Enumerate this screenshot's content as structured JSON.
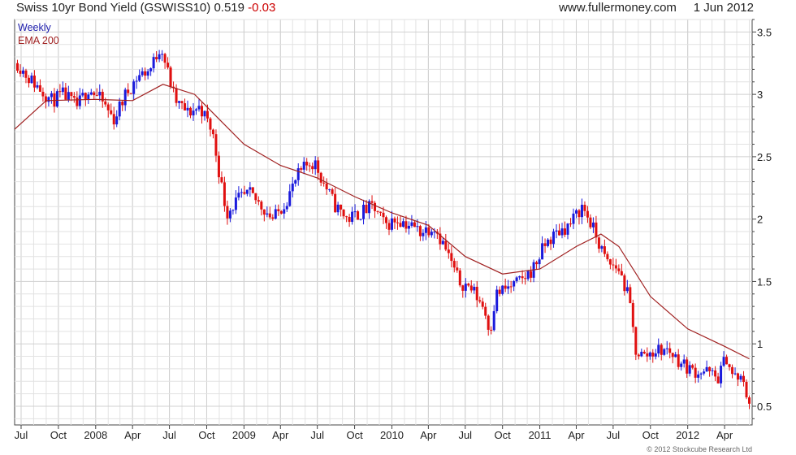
{
  "header": {
    "title": "Swiss 10yr Bond Yield (GSWISS10)",
    "last": "0.519",
    "change": "-0.03",
    "site": "www.fullermoney.com",
    "date": "1 Jun 2012"
  },
  "legend": {
    "period": "Weekly",
    "ema": "EMA 200"
  },
  "copyright": "© 2012 Stockcube Research Ltd",
  "colors": {
    "up": "#1a1adc",
    "down": "#e01010",
    "ema": "#a02020",
    "grid": "#e2e2e2",
    "axis": "#444444"
  },
  "chart_data": {
    "type": "line",
    "chart_style": "weekly candlestick (OHLC) with 200-period EMA overlay",
    "x_range": [
      "2007-06-15",
      "2012-06-08"
    ],
    "ylim": [
      0.35,
      3.6
    ],
    "y_ticks": [
      0.5,
      1,
      1.5,
      2,
      2.5,
      3,
      3.5
    ],
    "y_axis_side": "right",
    "grid": true,
    "x_ticks": [
      {
        "label": "Jul",
        "date": "2007-07-01"
      },
      {
        "label": "Oct",
        "date": "2007-10-01"
      },
      {
        "label": "2008",
        "date": "2008-01-01"
      },
      {
        "label": "Apr",
        "date": "2008-04-01"
      },
      {
        "label": "Jul",
        "date": "2008-07-01"
      },
      {
        "label": "Oct",
        "date": "2008-10-01"
      },
      {
        "label": "2009",
        "date": "2009-01-01"
      },
      {
        "label": "Apr",
        "date": "2009-04-01"
      },
      {
        "label": "Jul",
        "date": "2009-07-01"
      },
      {
        "label": "Oct",
        "date": "2009-10-01"
      },
      {
        "label": "2010",
        "date": "2010-01-01"
      },
      {
        "label": "Apr",
        "date": "2010-04-01"
      },
      {
        "label": "Jul",
        "date": "2010-07-01"
      },
      {
        "label": "Oct",
        "date": "2010-10-01"
      },
      {
        "label": "2011",
        "date": "2011-01-01"
      },
      {
        "label": "Apr",
        "date": "2011-04-01"
      },
      {
        "label": "Jul",
        "date": "2011-07-01"
      },
      {
        "label": "Oct",
        "date": "2011-10-01"
      },
      {
        "label": "2012",
        "date": "2012-01-01"
      },
      {
        "label": "Apr",
        "date": "2012-04-01"
      }
    ],
    "series": [
      {
        "name": "Weekly",
        "kind": "candlestick-close",
        "x": [
          "2007-06-22",
          "2007-07-15",
          "2007-08-15",
          "2007-09-15",
          "2007-10-15",
          "2007-11-15",
          "2007-12-15",
          "2008-01-15",
          "2008-02-15",
          "2008-03-15",
          "2008-04-15",
          "2008-05-15",
          "2008-06-10",
          "2008-06-25",
          "2008-07-15",
          "2008-08-15",
          "2008-09-15",
          "2008-10-15",
          "2008-11-10",
          "2008-11-20",
          "2008-12-15",
          "2009-01-15",
          "2009-02-15",
          "2009-03-15",
          "2009-04-15",
          "2009-05-15",
          "2009-06-10",
          "2009-06-25",
          "2009-07-15",
          "2009-08-15",
          "2009-09-15",
          "2009-10-15",
          "2009-11-15",
          "2009-12-15",
          "2010-01-15",
          "2010-02-15",
          "2010-03-15",
          "2010-04-15",
          "2010-05-15",
          "2010-06-15",
          "2010-07-15",
          "2010-08-15",
          "2010-08-31",
          "2010-09-15",
          "2010-10-15",
          "2010-11-15",
          "2010-12-15",
          "2011-01-15",
          "2011-02-15",
          "2011-03-15",
          "2011-04-15",
          "2011-04-25",
          "2011-05-15",
          "2011-06-15",
          "2011-07-15",
          "2011-08-10",
          "2011-08-25",
          "2011-09-15",
          "2011-10-15",
          "2011-11-15",
          "2011-12-15",
          "2012-01-15",
          "2012-02-15",
          "2012-03-15",
          "2012-04-05",
          "2012-04-20",
          "2012-05-15",
          "2012-06-01"
        ],
        "values": [
          3.25,
          3.15,
          3.05,
          2.95,
          3.0,
          2.9,
          3.05,
          2.95,
          2.8,
          3.0,
          3.15,
          3.2,
          3.4,
          3.2,
          2.95,
          2.85,
          2.9,
          2.7,
          2.2,
          2.05,
          2.15,
          2.2,
          2.1,
          2.0,
          2.15,
          2.35,
          2.45,
          2.45,
          2.3,
          2.1,
          2.0,
          2.05,
          2.1,
          1.95,
          2.0,
          1.95,
          1.9,
          1.95,
          1.75,
          1.5,
          1.45,
          1.3,
          1.1,
          1.4,
          1.45,
          1.5,
          1.6,
          1.8,
          1.9,
          1.95,
          2.1,
          2.05,
          1.9,
          1.65,
          1.6,
          1.35,
          0.95,
          0.9,
          0.95,
          0.95,
          0.85,
          0.78,
          0.78,
          0.72,
          0.9,
          0.75,
          0.7,
          0.52
        ]
      },
      {
        "name": "EMA 200",
        "kind": "line",
        "x": [
          "2007-06-15",
          "2007-09-01",
          "2008-01-01",
          "2008-04-01",
          "2008-06-15",
          "2008-09-01",
          "2008-11-01",
          "2009-01-01",
          "2009-04-01",
          "2009-07-01",
          "2009-10-01",
          "2010-01-01",
          "2010-04-01",
          "2010-07-01",
          "2010-10-01",
          "2011-01-01",
          "2011-04-01",
          "2011-06-01",
          "2011-07-15",
          "2011-10-01",
          "2012-01-01",
          "2012-04-01",
          "2012-06-01"
        ],
        "values": [
          2.72,
          2.95,
          2.96,
          2.95,
          3.08,
          3.0,
          2.8,
          2.6,
          2.43,
          2.33,
          2.18,
          2.05,
          1.95,
          1.7,
          1.56,
          1.6,
          1.78,
          1.88,
          1.78,
          1.38,
          1.12,
          0.98,
          0.88
        ]
      }
    ]
  }
}
